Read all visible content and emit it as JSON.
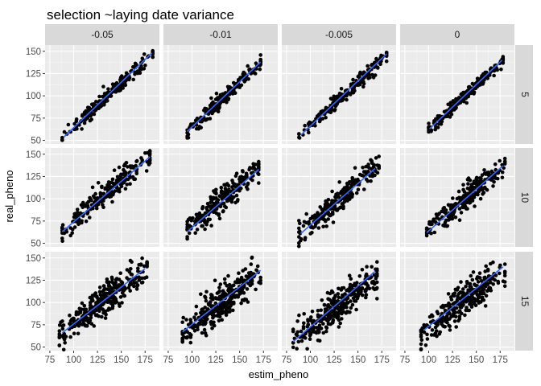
{
  "chart_data": {
    "type": "scatter",
    "title": "selection ~laying date variance",
    "xlabel": "estim_pheno",
    "ylabel": "real_pheno",
    "facet_cols": [
      "-0.05",
      "-0.01",
      "-0.005",
      "0"
    ],
    "facet_rows": [
      "5",
      "10",
      "15"
    ],
    "xlim": [
      70,
      190
    ],
    "ylim": [
      46,
      157
    ],
    "x_ticks": [
      "75",
      "100",
      "125",
      "150",
      "175"
    ],
    "y_ticks": [
      "50",
      "75",
      "100",
      "125",
      "150"
    ],
    "grid": true,
    "point_color": "#000000",
    "trend_color": "#3366FF",
    "panels": [
      {
        "col": "-0.05",
        "row": "5",
        "x_range": [
          88,
          183
        ],
        "slope": 1.0,
        "intercept": -36,
        "spread": 4,
        "n": 220,
        "trend": [
          [
            90,
            54
          ],
          [
            182,
            148
          ]
        ]
      },
      {
        "col": "-0.01",
        "row": "5",
        "x_range": [
          95,
          172
        ],
        "slope": 1.0,
        "intercept": -35,
        "spread": 4,
        "n": 200,
        "trend": [
          [
            95,
            60
          ],
          [
            172,
            138
          ]
        ]
      },
      {
        "col": "-0.005",
        "row": "5",
        "x_range": [
          88,
          180
        ],
        "slope": 1.0,
        "intercept": -34,
        "spread": 4,
        "n": 210,
        "trend": [
          [
            90,
            56
          ],
          [
            180,
            147
          ]
        ]
      },
      {
        "col": "0",
        "row": "5",
        "x_range": [
          100,
          178
        ],
        "slope": 1.0,
        "intercept": -38,
        "spread": 3.5,
        "n": 220,
        "trend": [
          [
            101,
            63
          ],
          [
            177,
            140
          ]
        ]
      },
      {
        "col": "-0.05",
        "row": "10",
        "x_range": [
          88,
          180
        ],
        "slope": 0.94,
        "intercept": -20,
        "spread": 6,
        "n": 250,
        "trend": [
          [
            88,
            63
          ],
          [
            180,
            147
          ]
        ]
      },
      {
        "col": "-0.01",
        "row": "10",
        "x_range": [
          95,
          170
        ],
        "slope": 0.94,
        "intercept": -25,
        "spread": 7,
        "n": 250,
        "trend": [
          [
            95,
            63
          ],
          [
            170,
            133
          ]
        ]
      },
      {
        "col": "-0.005",
        "row": "10",
        "x_range": [
          88,
          172
        ],
        "slope": 0.94,
        "intercept": -22,
        "spread": 7,
        "n": 250,
        "trend": [
          [
            90,
            61
          ],
          [
            168,
            134
          ]
        ]
      },
      {
        "col": "0",
        "row": "10",
        "x_range": [
          98,
          180
        ],
        "slope": 0.94,
        "intercept": -30,
        "spread": 7,
        "n": 250,
        "trend": [
          [
            98,
            62
          ],
          [
            178,
            137
          ]
        ]
      },
      {
        "col": "-0.05",
        "row": "15",
        "x_range": [
          85,
          177
        ],
        "slope": 0.83,
        "intercept": -7,
        "spread": 9,
        "n": 320,
        "trend": [
          [
            88,
            66
          ],
          [
            175,
            138
          ]
        ]
      },
      {
        "col": "-0.01",
        "row": "15",
        "x_range": [
          90,
          172
        ],
        "slope": 0.83,
        "intercept": -8,
        "spread": 9,
        "n": 320,
        "trend": [
          [
            90,
            67
          ],
          [
            172,
            136
          ]
        ]
      },
      {
        "col": "-0.005",
        "row": "15",
        "x_range": [
          82,
          170
        ],
        "slope": 0.83,
        "intercept": -12,
        "spread": 9,
        "n": 320,
        "trend": [
          [
            82,
            56
          ],
          [
            168,
            135
          ]
        ]
      },
      {
        "col": "0",
        "row": "15",
        "x_range": [
          92,
          180
        ],
        "slope": 0.83,
        "intercept": -12,
        "spread": 9,
        "n": 320,
        "trend": [
          [
            95,
            69
          ],
          [
            178,
            140
          ]
        ]
      }
    ]
  }
}
